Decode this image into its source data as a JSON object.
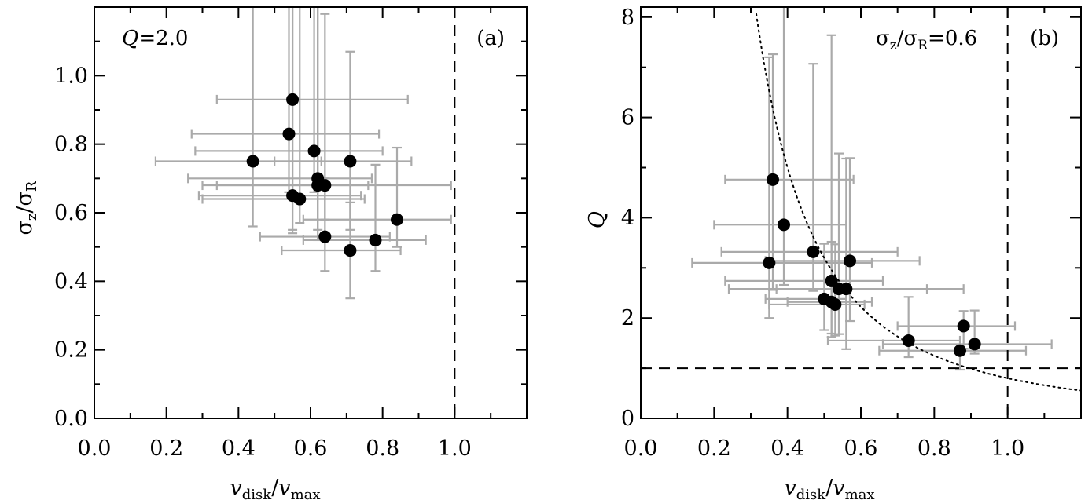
{
  "chart_data": [
    {
      "type": "scatter",
      "panel_label": "(a)",
      "annotation": "Q=2.0",
      "annotation_parts": {
        "main": "Q",
        "rest": "=2.0"
      },
      "xlabel": "v_disk/v_max",
      "ylabel": "σ_z/σ_R",
      "xlim": [
        0.0,
        1.2
      ],
      "ylim": [
        0.0,
        1.2
      ],
      "xticks": [
        "0.0",
        "0.2",
        "0.4",
        "0.6",
        "0.8",
        "1.0"
      ],
      "yticks": [
        "0.0",
        "0.2",
        "0.4",
        "0.6",
        "0.8",
        "1.0"
      ],
      "reference_lines": [
        {
          "orientation": "vertical",
          "x": 1.0,
          "style": "dashed"
        }
      ],
      "points": [
        {
          "x": 0.44,
          "y": 0.75,
          "xerr": [
            0.27,
            0.19
          ],
          "yerr": [
            0.19,
            0.66
          ]
        },
        {
          "x": 0.55,
          "y": 0.93,
          "xerr": [
            0.21,
            0.32
          ],
          "yerr": [
            0.38,
            0.4
          ]
        },
        {
          "x": 0.54,
          "y": 0.83,
          "xerr": [
            0.27,
            0.25
          ],
          "yerr": [
            0.17,
            0.55
          ]
        },
        {
          "x": 0.61,
          "y": 0.78,
          "xerr": [
            0.33,
            0.19
          ],
          "yerr": [
            0.12,
            0.7
          ]
        },
        {
          "x": 0.71,
          "y": 0.75,
          "xerr": [
            0.21,
            0.17
          ],
          "yerr": [
            0.2,
            0.32
          ]
        },
        {
          "x": 0.62,
          "y": 0.7,
          "xerr": [
            0.36,
            0.15
          ],
          "yerr": [
            0.18,
            0.6
          ]
        },
        {
          "x": 0.62,
          "y": 0.68,
          "xerr": [
            0.32,
            0.14
          ],
          "yerr": [
            0.13,
            0.56
          ]
        },
        {
          "x": 0.64,
          "y": 0.68,
          "xerr": [
            0.3,
            0.35
          ],
          "yerr": [
            0.1,
            0.5
          ]
        },
        {
          "x": 0.55,
          "y": 0.65,
          "xerr": [
            0.26,
            0.19
          ],
          "yerr": [
            0.11,
            0.55
          ]
        },
        {
          "x": 0.57,
          "y": 0.64,
          "xerr": [
            0.27,
            0.18
          ],
          "yerr": [
            0.07,
            0.57
          ]
        },
        {
          "x": 0.84,
          "y": 0.58,
          "xerr": [
            0.26,
            0.15
          ],
          "yerr": [
            0.08,
            0.21
          ]
        },
        {
          "x": 0.64,
          "y": 0.53,
          "xerr": [
            0.18,
            0.18
          ],
          "yerr": [
            0.1,
            0.17
          ]
        },
        {
          "x": 0.78,
          "y": 0.52,
          "xerr": [
            0.2,
            0.14
          ],
          "yerr": [
            0.09,
            0.22
          ]
        },
        {
          "x": 0.71,
          "y": 0.49,
          "xerr": [
            0.19,
            0.14
          ],
          "yerr": [
            0.14,
            0.14
          ]
        }
      ]
    },
    {
      "type": "scatter",
      "panel_label": "(b)",
      "annotation": "σz/σR=0.6",
      "annotation_parts": {
        "a": "σ",
        "a_sub": "z",
        "slash": "/σ",
        "b_sub": "R",
        "rest": "=0.6"
      },
      "xlabel": "v_disk/v_max",
      "ylabel": "Q",
      "xlim": [
        0.0,
        1.2
      ],
      "ylim": [
        0.0,
        8.2
      ],
      "xticks": [
        "0.0",
        "0.2",
        "0.4",
        "0.6",
        "0.8",
        "1.0"
      ],
      "yticks": [
        "0",
        "2",
        "4",
        "6",
        "8"
      ],
      "reference_lines": [
        {
          "orientation": "vertical",
          "x": 1.0,
          "style": "dashed"
        },
        {
          "orientation": "horizontal",
          "y": 1.0,
          "style": "dashed"
        }
      ],
      "curve": {
        "style": "dotted",
        "form": "Q = Q0 / x^2",
        "Q0": 0.8,
        "x_start": 0.31
      },
      "points": [
        {
          "x": 0.36,
          "y": 4.76,
          "xerr": [
            0.13,
            0.22
          ],
          "yerr": [
            2.2,
            2.5
          ]
        },
        {
          "x": 0.39,
          "y": 3.86,
          "xerr": [
            0.19,
            0.17
          ],
          "yerr": [
            1.2,
            4.4
          ]
        },
        {
          "x": 0.47,
          "y": 3.32,
          "xerr": [
            0.25,
            0.23
          ],
          "yerr": [
            0.78,
            3.75
          ]
        },
        {
          "x": 0.35,
          "y": 3.1,
          "xerr": [
            0.21,
            0.28
          ],
          "yerr": [
            1.1,
            4.1
          ]
        },
        {
          "x": 0.57,
          "y": 3.14,
          "xerr": [
            0.23,
            0.19
          ],
          "yerr": [
            1.2,
            2.05
          ]
        },
        {
          "x": 0.52,
          "y": 2.74,
          "xerr": [
            0.29,
            0.14
          ],
          "yerr": [
            1.12,
            4.9
          ]
        },
        {
          "x": 0.54,
          "y": 2.58,
          "xerr": [
            0.3,
            0.24
          ],
          "yerr": [
            0.9,
            2.7
          ]
        },
        {
          "x": 0.56,
          "y": 2.58,
          "xerr": [
            0.19,
            0.32
          ],
          "yerr": [
            1.2,
            2.6
          ]
        },
        {
          "x": 0.5,
          "y": 2.38,
          "xerr": [
            0.16,
            0.06
          ],
          "yerr": [
            0.62,
            1.1
          ]
        },
        {
          "x": 0.52,
          "y": 2.32,
          "xerr": [
            0.12,
            0.11
          ],
          "yerr": [
            0.63,
            1.2
          ]
        },
        {
          "x": 0.53,
          "y": 2.27,
          "xerr": [
            0.18,
            0.08
          ],
          "yerr": [
            0.62,
            1.2
          ]
        },
        {
          "x": 0.73,
          "y": 1.55,
          "xerr": [
            0.22,
            0.14
          ],
          "yerr": [
            0.33,
            0.87
          ]
        },
        {
          "x": 0.88,
          "y": 1.84,
          "xerr": [
            0.18,
            0.14
          ],
          "yerr": [
            0.45,
            0.3
          ]
        },
        {
          "x": 0.91,
          "y": 1.48,
          "xerr": [
            0.25,
            0.21
          ],
          "yerr": [
            0.19,
            0.67
          ]
        },
        {
          "x": 0.87,
          "y": 1.35,
          "xerr": [
            0.22,
            0.18
          ],
          "yerr": [
            0.38,
            0.0
          ]
        }
      ]
    }
  ]
}
